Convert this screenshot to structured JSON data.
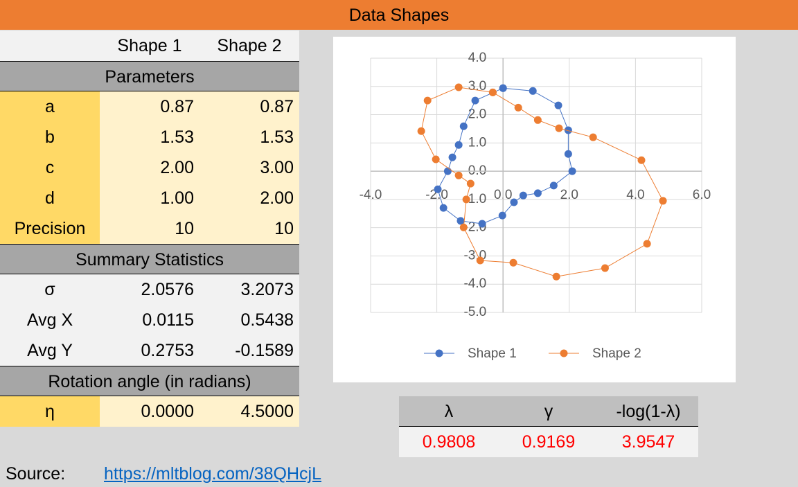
{
  "header": {
    "title": "Data Shapes"
  },
  "table": {
    "columns": [
      "Shape 1",
      "Shape 2"
    ],
    "sections": [
      {
        "title": "Parameters",
        "rows": [
          [
            "a",
            "0.87",
            "0.87"
          ],
          [
            "b",
            "1.53",
            "1.53"
          ],
          [
            "c",
            "2.00",
            "3.00"
          ],
          [
            "d",
            "1.00",
            "2.00"
          ],
          [
            "Precision",
            "10",
            "10"
          ]
        ]
      },
      {
        "title": "Summary Statistics",
        "rows": [
          [
            "σ",
            "2.0576",
            "3.2073"
          ],
          [
            "Avg X",
            "0.0115",
            "0.5438"
          ],
          [
            "Avg Y",
            "0.2753",
            "-0.1589"
          ]
        ]
      },
      {
        "title": "Rotation angle (in radians)",
        "rows": [
          [
            "η",
            "0.0000",
            "4.5000"
          ]
        ]
      }
    ]
  },
  "metrics": {
    "headers": [
      "λ",
      "γ",
      "-log(1-λ)"
    ],
    "values": [
      "0.9808",
      "0.9169",
      "3.9547"
    ]
  },
  "source": {
    "label": "Source:",
    "link": "https://mltblog.com/38QHcjL"
  },
  "chart_data": {
    "type": "scatter",
    "series": [
      {
        "name": "Shape 1",
        "color": "#4472c4",
        "x": [
          0,
          0.9,
          1.67,
          1.97,
          1.97,
          2.09,
          1.53,
          1.05,
          0.61,
          0.33,
          -0.02,
          -0.63,
          -1.28,
          -1.8,
          -1.97,
          -1.67,
          -1.53,
          -1.34,
          -1.19,
          -0.84,
          0
        ],
        "values": [
          2.94,
          2.84,
          2.33,
          1.45,
          0.61,
          0,
          -0.51,
          -0.78,
          -0.86,
          -1.1,
          -1.57,
          -1.86,
          -1.76,
          -1.3,
          -0.64,
          0,
          0.49,
          0.93,
          1.59,
          2.5,
          2.94
        ]
      },
      {
        "name": "Shape 2",
        "color": "#ed7d31",
        "x": [
          -0.31,
          0.46,
          1.05,
          1.69,
          2.72,
          4.18,
          4.83,
          4.35,
          3.08,
          1.61,
          0.31,
          -0.69,
          -1.19,
          -1.11,
          -0.98,
          -1.34,
          -2.03,
          -2.47,
          -2.28,
          -1.34,
          -0.31
        ],
        "values": [
          2.79,
          2.25,
          1.81,
          1.52,
          1.2,
          0.39,
          -1.05,
          -2.57,
          -3.43,
          -3.73,
          -3.24,
          -3.16,
          -1.99,
          -1.0,
          -0.44,
          -0.15,
          0.42,
          1.42,
          2.5,
          2.97,
          2.79
        ]
      }
    ],
    "xlim": [
      -4,
      6
    ],
    "ylim": [
      -5,
      4
    ],
    "xticks": [
      {
        "value": -4,
        "label": "-4.0"
      },
      {
        "value": -2,
        "label": "-2.0"
      },
      {
        "value": 0,
        "label": "0.0"
      },
      {
        "value": 2,
        "label": "2.0"
      },
      {
        "value": 4,
        "label": "4.0"
      },
      {
        "value": 6,
        "label": "6.0"
      }
    ],
    "yticks": [
      {
        "value": 4,
        "label": "4.0"
      },
      {
        "value": 3,
        "label": "3.0"
      },
      {
        "value": 2,
        "label": "2.0"
      },
      {
        "value": 1,
        "label": "1.0"
      },
      {
        "value": 0,
        "label": "0.0"
      },
      {
        "value": -1,
        "label": "-1.0"
      },
      {
        "value": -2,
        "label": "-2.0"
      },
      {
        "value": -3,
        "label": "-3.0"
      },
      {
        "value": -4,
        "label": "-4.0"
      },
      {
        "value": -5,
        "label": "-5.0"
      }
    ],
    "grid": true,
    "legend": "bottom"
  }
}
